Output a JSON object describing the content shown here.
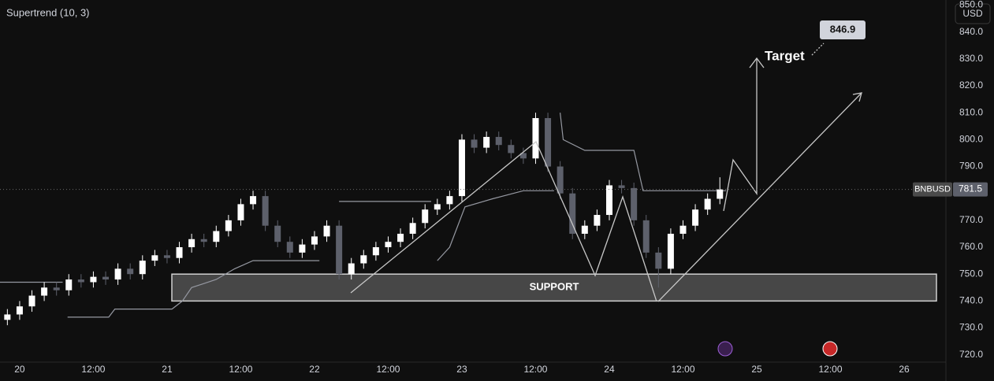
{
  "chart_data": {
    "type": "candlestick",
    "title": "Supertrend (10, 3)",
    "currency": "USD",
    "symbol": "BNBUSD",
    "last_price": 781.5,
    "target_label": "Target",
    "target_value": 846.9,
    "support_label": "SUPPORT",
    "support_range": [
      740,
      750
    ],
    "up_color": "#ffffff",
    "down_color": "#5d606b",
    "xlim": [
      -3.2,
      150.8
    ],
    "xticks": [
      {
        "value": 0,
        "label": "20"
      },
      {
        "value": 12,
        "label": "12:00"
      },
      {
        "value": 24,
        "label": "21"
      },
      {
        "value": 36,
        "label": "12:00"
      },
      {
        "value": 48,
        "label": "22"
      },
      {
        "value": 60,
        "label": "12:00"
      },
      {
        "value": 72,
        "label": "23"
      },
      {
        "value": 84,
        "label": "12:00"
      },
      {
        "value": 96,
        "label": "24"
      },
      {
        "value": 108,
        "label": "12:00"
      },
      {
        "value": 120,
        "label": "25"
      },
      {
        "value": 132,
        "label": "12:00"
      },
      {
        "value": 144,
        "label": "26"
      }
    ],
    "ylim": [
      716.7,
      851.9
    ],
    "yticks": [
      {
        "value": 720,
        "label": "720.0"
      },
      {
        "value": 730,
        "label": "730.0"
      },
      {
        "value": 740,
        "label": "740.0"
      },
      {
        "value": 750,
        "label": "750.0"
      },
      {
        "value": 760,
        "label": "760.0"
      },
      {
        "value": 770,
        "label": "770.0"
      },
      {
        "value": 780,
        "label": "780.0"
      },
      {
        "value": 790,
        "label": "790.0"
      },
      {
        "value": 800,
        "label": "800.0"
      },
      {
        "value": 810,
        "label": "810.0"
      },
      {
        "value": 820,
        "label": "820.0"
      },
      {
        "value": 830,
        "label": "830.0"
      },
      {
        "value": 840,
        "label": "840.0"
      },
      {
        "value": 850,
        "label": "850.0"
      }
    ],
    "grid": true,
    "candles": {
      "x": [
        -2,
        0,
        2,
        4,
        6,
        8,
        10,
        12,
        14,
        16,
        18,
        20,
        22,
        24,
        26,
        28,
        30,
        32,
        34,
        36,
        38,
        40,
        42,
        44,
        46,
        48,
        50,
        52,
        54,
        56,
        58,
        60,
        62,
        64,
        66,
        68,
        70,
        72,
        74,
        76,
        78,
        80,
        82,
        84,
        86,
        88,
        90,
        92,
        94,
        96,
        98,
        100,
        102,
        104,
        106,
        108,
        110,
        112,
        114
      ],
      "open": [
        733,
        735,
        738,
        742,
        745,
        744,
        748,
        747,
        749,
        748,
        752,
        750,
        755,
        757,
        756,
        760,
        763,
        762,
        766,
        770,
        776,
        779,
        768,
        762,
        758,
        761,
        764,
        768,
        750,
        754,
        757,
        760,
        762,
        765,
        769,
        774,
        776,
        779,
        800,
        797,
        801,
        798,
        795,
        793,
        808,
        790,
        780,
        765,
        768,
        772,
        783,
        782,
        770,
        758,
        752,
        765,
        768,
        774,
        778
      ],
      "high": [
        737,
        740,
        744,
        747,
        747,
        750,
        750,
        751,
        751,
        754,
        754,
        757,
        759,
        759,
        762,
        765,
        765,
        768,
        772,
        778,
        781,
        781,
        770,
        764,
        763,
        766,
        770,
        770,
        756,
        759,
        762,
        764,
        767,
        771,
        776,
        778,
        781,
        802,
        802,
        803,
        803,
        800,
        797,
        810,
        810,
        792,
        782,
        770,
        774,
        785,
        785,
        784,
        772,
        760,
        767,
        770,
        776,
        780,
        786
      ],
      "low": [
        731,
        733,
        736,
        740,
        742,
        742,
        745,
        745,
        746,
        746,
        748,
        748,
        753,
        754,
        754,
        758,
        760,
        760,
        764,
        768,
        774,
        766,
        760,
        756,
        756,
        759,
        762,
        748,
        748,
        752,
        755,
        758,
        760,
        763,
        767,
        772,
        774,
        777,
        795,
        795,
        796,
        793,
        791,
        791,
        788,
        778,
        763,
        763,
        766,
        770,
        780,
        768,
        756,
        745,
        750,
        763,
        766,
        772,
        776
      ],
      "close": [
        735,
        738,
        742,
        745,
        744,
        748,
        747,
        749,
        748,
        752,
        750,
        755,
        757,
        756,
        760,
        763,
        762,
        766,
        770,
        776,
        779,
        768,
        762,
        758,
        761,
        764,
        768,
        750,
        754,
        757,
        760,
        762,
        765,
        769,
        774,
        776,
        779,
        800,
        797,
        801,
        798,
        795,
        793,
        808,
        790,
        780,
        765,
        768,
        772,
        783,
        782,
        770,
        758,
        752,
        765,
        768,
        774,
        778,
        781.5
      ]
    },
    "supertrend": {
      "color": "#9598a1",
      "x": [
        -3.2,
        7,
        7.5,
        7.8,
        14.5,
        15.5,
        24.8,
        26.5,
        28,
        32,
        35,
        38,
        48.8,
        49.5,
        52,
        67,
        67.5,
        68,
        70,
        72.5,
        77,
        82,
        87,
        87.5,
        88,
        88.5,
        92,
        100,
        101.5,
        115
      ],
      "values": [
        747,
        747,
        null,
        734,
        734,
        737,
        737,
        740,
        745,
        748,
        752,
        755,
        755,
        null,
        777,
        777,
        null,
        755,
        760,
        775,
        778,
        781,
        781,
        null,
        810,
        800,
        796,
        796,
        781,
        781
      ]
    }
  }
}
